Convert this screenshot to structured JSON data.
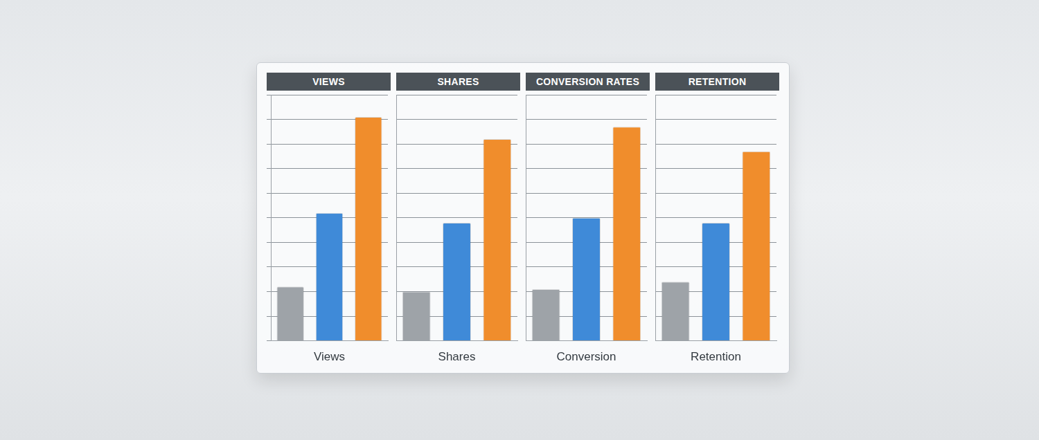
{
  "chart_data": [
    {
      "type": "bar",
      "title": "VIEWS",
      "x_label": "Views",
      "categories": [
        null,
        null,
        null
      ],
      "values": [
        2.2,
        5.2,
        9.1
      ],
      "colors": [
        "#9ea3a8",
        "#3f8ad8",
        "#f08d2c"
      ],
      "ylim": [
        0,
        10
      ],
      "yticks": [
        0,
        1,
        2,
        3,
        4,
        5,
        6,
        7,
        8,
        9,
        10
      ],
      "grid": true,
      "tick_labels": false
    },
    {
      "type": "bar",
      "title": "SHARES",
      "x_label": "Shares",
      "categories": [
        null,
        null,
        null
      ],
      "values": [
        2.0,
        4.8,
        8.2
      ],
      "colors": [
        "#9ea3a8",
        "#3f8ad8",
        "#f08d2c"
      ],
      "ylim": [
        0,
        10
      ],
      "yticks": [
        0,
        1,
        2,
        3,
        4,
        5,
        6,
        7,
        8,
        9,
        10
      ],
      "grid": true,
      "tick_labels": false
    },
    {
      "type": "bar",
      "title": "CONVERSION RATES",
      "x_label": "Conversion",
      "categories": [
        null,
        null,
        null
      ],
      "values": [
        2.1,
        5.0,
        8.7
      ],
      "colors": [
        "#9ea3a8",
        "#3f8ad8",
        "#f08d2c"
      ],
      "ylim": [
        0,
        10
      ],
      "yticks": [
        0,
        1,
        2,
        3,
        4,
        5,
        6,
        7,
        8,
        9,
        10
      ],
      "grid": true,
      "tick_labels": false
    },
    {
      "type": "bar",
      "title": "RETENTION",
      "x_label": "Retention",
      "categories": [
        null,
        null,
        null
      ],
      "values": [
        2.4,
        4.8,
        7.7
      ],
      "colors": [
        "#9ea3a8",
        "#3f8ad8",
        "#f08d2c"
      ],
      "ylim": [
        0,
        10
      ],
      "yticks": [
        0,
        1,
        2,
        3,
        4,
        5,
        6,
        7,
        8,
        9,
        10
      ],
      "grid": true,
      "tick_labels": false
    }
  ]
}
